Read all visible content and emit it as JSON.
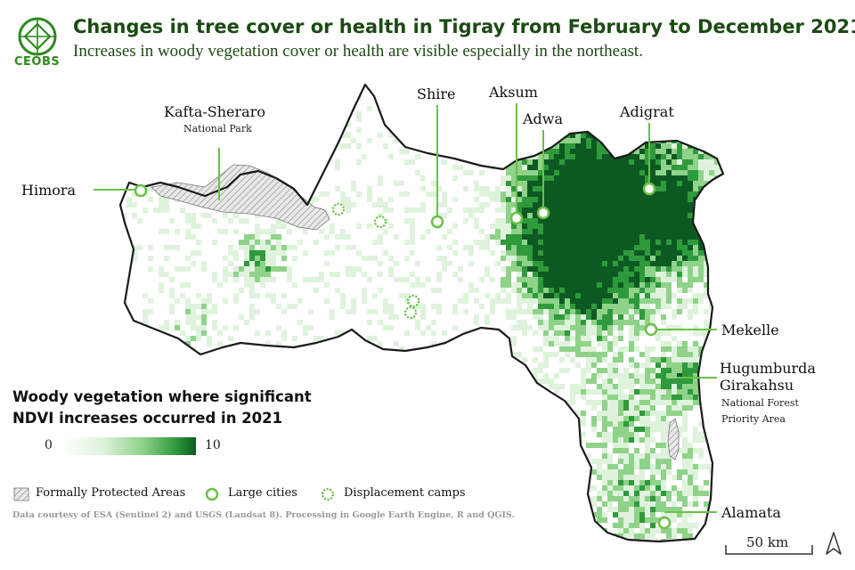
{
  "header": {
    "logo_text": "CEOBS",
    "title": "Changes in tree cover or health in Tigray from February to December 2021",
    "subtitle": "Increases in woody vegetation cover or health are visible especially in the northeast."
  },
  "colors": {
    "brand_green": "#2f8a1f",
    "title_green": "#1c4a14",
    "marker_green": "#6cc04a",
    "outline": "#1a1a1a",
    "veg_scale": [
      "#ffffff",
      "#dff3dc",
      "#8fd28a",
      "#2f9a3c",
      "#0c5a22"
    ]
  },
  "places": {
    "kafta": {
      "name": "Kafta-Sheraro",
      "sub": "National Park"
    },
    "himora": {
      "name": "Himora"
    },
    "shire": {
      "name": "Shire"
    },
    "aksum": {
      "name": "Aksum"
    },
    "adwa": {
      "name": "Adwa"
    },
    "adigrat": {
      "name": "Adigrat"
    },
    "mekelle": {
      "name": "Mekelle"
    },
    "hugumburda": {
      "name1": "Hugumburda",
      "name2": "Girakahsu",
      "sub1": "National Forest",
      "sub2": "Priority Area"
    },
    "alamata": {
      "name": "Alamata"
    }
  },
  "legend": {
    "title_line1": "Woody vegetation where significant",
    "title_line2": "NDVI increases occurred in 2021",
    "scale_min": "0",
    "scale_max": "10",
    "protected_label": "Formally Protected Areas",
    "cities_label": "Large cities",
    "camps_label": "Displacement camps",
    "protected_icon": "hatch-icon",
    "city_icon": "circle-marker-icon",
    "camp_icon": "camp-marker-icon"
  },
  "credit": "Data courtesy of ESA (Sentinel 2) and USGS (Landsat 8). Processing in Google Earth Engine, R and QGIS.",
  "scale_bar": {
    "label": "50 km"
  },
  "north_icon": "north-arrow-icon"
}
